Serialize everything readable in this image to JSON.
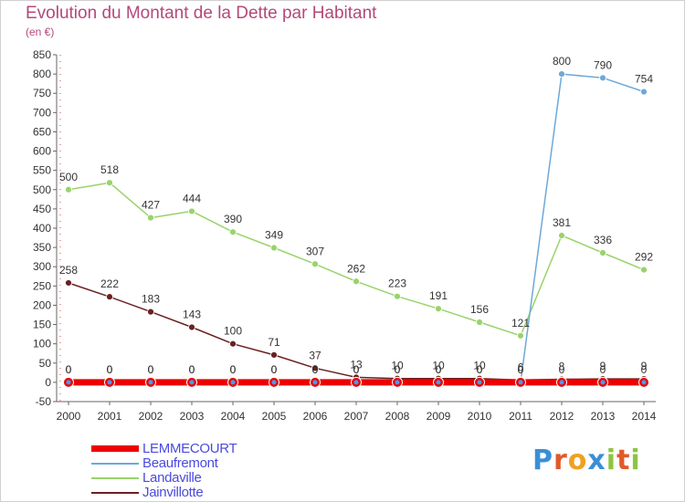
{
  "title": "Evolution du Montant de la Dette par Habitant",
  "subtitle": "(en €)",
  "logo": {
    "text": "Proxiti"
  },
  "chart_data": {
    "type": "line",
    "x": [
      2000,
      2001,
      2002,
      2003,
      2004,
      2005,
      2006,
      2007,
      2008,
      2009,
      2010,
      2011,
      2012,
      2013,
      2014
    ],
    "ylim": [
      -50,
      850
    ],
    "yticks": [
      -50,
      0,
      50,
      100,
      150,
      200,
      250,
      300,
      350,
      400,
      450,
      500,
      550,
      600,
      650,
      700,
      750,
      800,
      850
    ],
    "grid": false,
    "legend_position": "bottom-left",
    "series": [
      {
        "name": "LEMMECOURT",
        "color": "#ee0000",
        "thick": true,
        "values": [
          0,
          0,
          0,
          0,
          0,
          0,
          0,
          0,
          0,
          0,
          0,
          0,
          0,
          0,
          0
        ],
        "labels": [
          "0",
          "0",
          "0",
          "0",
          "0",
          "0",
          "0",
          "0",
          "0",
          "0",
          "0",
          "0",
          "0",
          "0",
          "0"
        ]
      },
      {
        "name": "Beaufremont",
        "color": "#6ea8d8",
        "thick": false,
        "values": [
          0,
          0,
          0,
          0,
          0,
          0,
          0,
          0,
          0,
          0,
          0,
          0,
          800,
          790,
          754
        ],
        "labels": [
          "0",
          "0",
          "0",
          "0",
          "0",
          "0",
          "0",
          "0",
          "0",
          "0",
          "0",
          "0",
          "800",
          "790",
          "754"
        ]
      },
      {
        "name": "Landaville",
        "color": "#99d36a",
        "thick": false,
        "values": [
          500,
          518,
          427,
          444,
          390,
          349,
          307,
          262,
          223,
          191,
          156,
          121,
          381,
          336,
          292
        ],
        "labels": [
          "500",
          "518",
          "427",
          "444",
          "390",
          "349",
          "307",
          "262",
          "223",
          "191",
          "156",
          "121",
          "381",
          "336",
          "292"
        ]
      },
      {
        "name": "Jainvillotte",
        "color": "#6b2020",
        "thick": false,
        "values": [
          258,
          222,
          183,
          143,
          100,
          71,
          37,
          13,
          10,
          10,
          10,
          6,
          8,
          9,
          9
        ],
        "labels": [
          "258",
          "222",
          "183",
          "143",
          "100",
          "71",
          "37",
          "13",
          "10",
          "10",
          "10",
          "6",
          "8",
          "9",
          "9"
        ]
      }
    ]
  }
}
